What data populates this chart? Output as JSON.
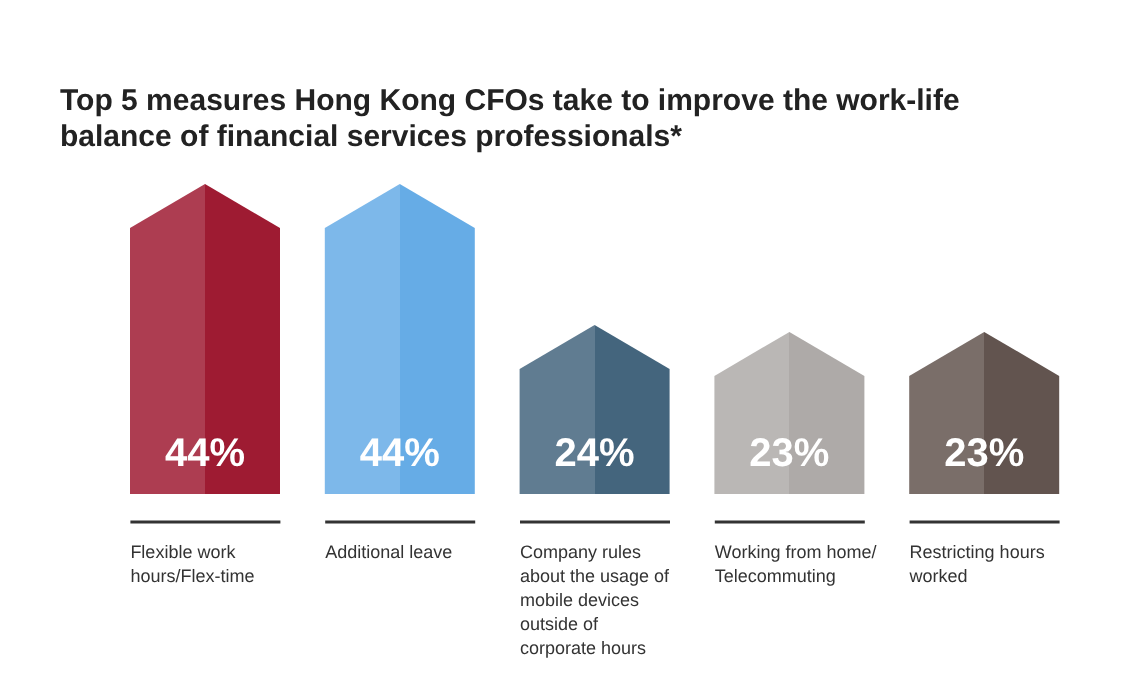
{
  "chart_data": {
    "type": "bar",
    "title": "Top 5 measures Hong Kong CFOs take to improve the work-life balance of financial services professionals*",
    "categories": [
      "Flexible work hours/Flex-time",
      "Additional leave",
      "Company rules about the usage of mobile devices outside of corporate hours",
      "Working from home/ Telecommuting",
      "Restricting hours worked"
    ],
    "values": [
      44,
      44,
      24,
      23,
      23
    ],
    "colors": [
      "#9e1b32",
      "#66ace6",
      "#44657d",
      "#aeaaa8",
      "#62544f"
    ],
    "value_labels": [
      "44%",
      "44%",
      "24%",
      "23%",
      "23%"
    ]
  }
}
